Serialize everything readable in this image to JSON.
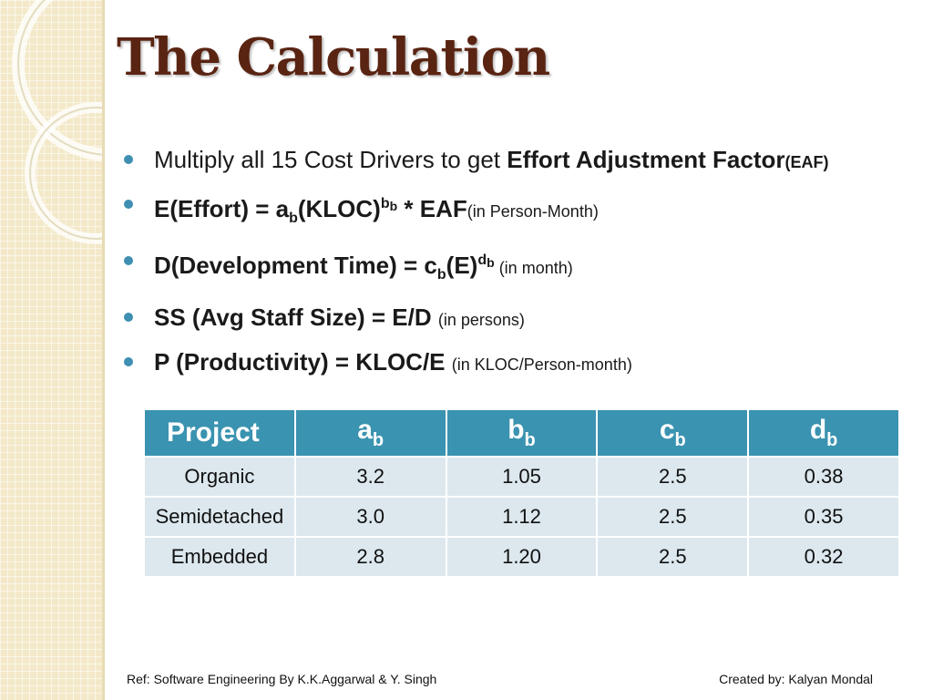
{
  "slide": {
    "title": "The Calculation",
    "bullets": {
      "b1": {
        "text1": "Multiply all 15 Cost Drivers to get ",
        "bold1": "Effort Adjustment Factor",
        "bold2": "(EAF)"
      },
      "b2": {
        "lhs": "E(Effort) = a",
        "sub_b": "b",
        "mid": "(KLOC)",
        "sup_b": "b",
        "sup_sub": "b",
        "rhs": " * EAF",
        "unit": "(in Person-Month)"
      },
      "b3": {
        "lhs": "D(Development Time) = c",
        "sub_b": "b",
        "mid": "(E)",
        "sup_d": "d",
        "sup_b": "b",
        "unit": " (in month)"
      },
      "b4": {
        "main": "SS (Avg Staff Size) = E/D ",
        "unit": "(in persons)"
      },
      "b5": {
        "main": "P (Productivity) = KLOC/E ",
        "unit": "(in KLOC/Person-month)"
      }
    },
    "table": {
      "headers": [
        {
          "main": "Project",
          "sub": ""
        },
        {
          "main": "a",
          "sub": "b"
        },
        {
          "main": "b",
          "sub": "b"
        },
        {
          "main": "c",
          "sub": "b"
        },
        {
          "main": "d",
          "sub": "b"
        }
      ],
      "rows": [
        [
          "Organic",
          "3.2",
          "1.05",
          "2.5",
          "0.38"
        ],
        [
          "Semidetached",
          "3.0",
          "1.12",
          "2.5",
          "0.35"
        ],
        [
          "Embedded",
          "2.8",
          "1.20",
          "2.5",
          "0.32"
        ]
      ]
    },
    "footer": {
      "ref": "Ref: Software Engineering By K.K.Aggarwal & Y. Singh",
      "credit": "Created by: Kalyan Mondal"
    },
    "colors": {
      "title": "#5a2412",
      "accent": "#3a93b0",
      "row_fill": "#dce8ee",
      "strip": "#f3e9c9"
    }
  }
}
